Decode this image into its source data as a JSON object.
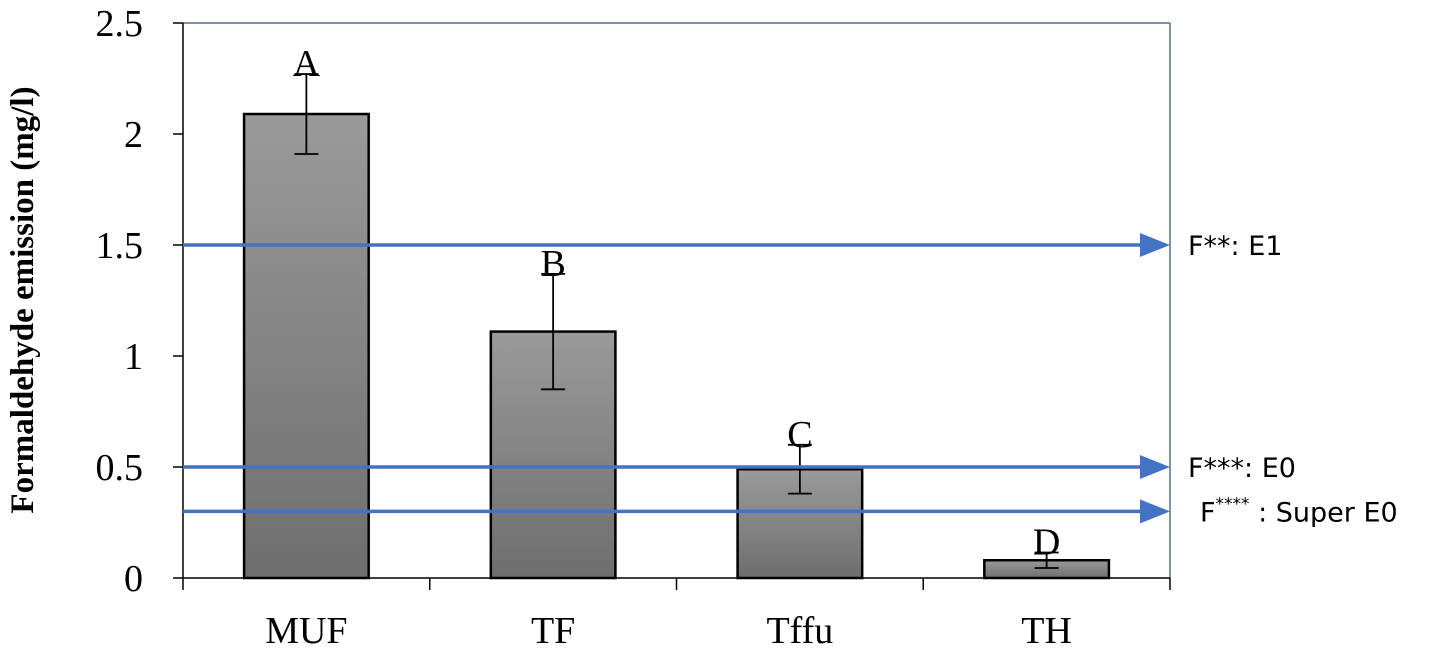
{
  "chart_data": {
    "type": "bar",
    "title": "",
    "xlabel": "",
    "ylabel": "Formaldehyde emission (mg/l)",
    "ylim": [
      0,
      2.5
    ],
    "yticks": [
      "0",
      "0.5",
      "1",
      "1.5",
      "2",
      "2.5"
    ],
    "categories": [
      "MUF",
      "TF",
      "Tffu",
      "TH"
    ],
    "values": [
      2.09,
      1.11,
      0.49,
      0.08
    ],
    "errors": [
      0.18,
      0.26,
      0.11,
      0.035
    ],
    "significance_letters": [
      "A",
      "B",
      "C",
      "D"
    ],
    "bar_color": "#8c8c8c",
    "reference_lines": [
      {
        "value": 1.5,
        "label_main": "F**: E1",
        "label_prefix": "",
        "label_sup": "",
        "label_suffix": ""
      },
      {
        "value": 0.5,
        "label_main": "F***: E0",
        "label_prefix": "",
        "label_sup": "",
        "label_suffix": ""
      },
      {
        "value": 0.3,
        "label_main": "",
        "label_prefix": "F",
        "label_sup": "****",
        "label_suffix": " : Super E0"
      }
    ],
    "reference_line_color": "#4472c4",
    "grid": false
  }
}
